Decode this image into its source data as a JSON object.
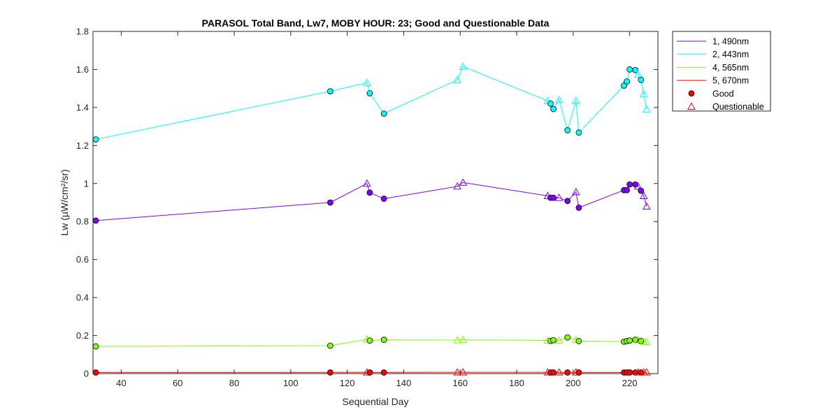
{
  "chart_data": {
    "type": "line",
    "title": "PARASOL Total Band,  Lw7, MOBY HOUR: 23;  Good and Questionable Data",
    "xlabel": "Sequential Day",
    "ylabel": "Lw (µW/cm²/sr)",
    "xlim": [
      30,
      230
    ],
    "ylim": [
      0,
      1.8
    ],
    "xticks": [
      40,
      60,
      80,
      100,
      120,
      140,
      160,
      180,
      200,
      220
    ],
    "yticks": [
      0,
      0.2,
      0.4,
      0.6,
      0.8,
      1,
      1.2,
      1.4,
      1.6,
      1.8
    ],
    "legend_position": "outside-top-right",
    "series": [
      {
        "name": "1, 490nm",
        "color": "#7F00FF",
        "points": [
          {
            "x": 31,
            "y": 0.805,
            "q": "good"
          },
          {
            "x": 114,
            "y": 0.9,
            "q": "good"
          },
          {
            "x": 127,
            "y": 1.0,
            "q": "questionable"
          },
          {
            "x": 128,
            "y": 0.952,
            "q": "good"
          },
          {
            "x": 133,
            "y": 0.92,
            "q": "good"
          },
          {
            "x": 159,
            "y": 0.985,
            "q": "questionable"
          },
          {
            "x": 161,
            "y": 1.005,
            "q": "questionable"
          },
          {
            "x": 191,
            "y": 0.935,
            "q": "questionable"
          },
          {
            "x": 192,
            "y": 0.925,
            "q": "good"
          },
          {
            "x": 193,
            "y": 0.925,
            "q": "good"
          },
          {
            "x": 195,
            "y": 0.925,
            "q": "questionable"
          },
          {
            "x": 198,
            "y": 0.908,
            "q": "good"
          },
          {
            "x": 201,
            "y": 0.955,
            "q": "questionable"
          },
          {
            "x": 202,
            "y": 0.873,
            "q": "good"
          },
          {
            "x": 218,
            "y": 0.965,
            "q": "good"
          },
          {
            "x": 219,
            "y": 0.965,
            "q": "good"
          },
          {
            "x": 220,
            "y": 0.995,
            "q": "good"
          },
          {
            "x": 222,
            "y": 0.995,
            "q": "good"
          },
          {
            "x": 223,
            "y": 0.985,
            "q": "questionable"
          },
          {
            "x": 224,
            "y": 0.962,
            "q": "good"
          },
          {
            "x": 225,
            "y": 0.935,
            "q": "questionable"
          },
          {
            "x": 226,
            "y": 0.88,
            "q": "questionable"
          }
        ]
      },
      {
        "name": "2, 443nm",
        "color": "#00FFFF",
        "points": [
          {
            "x": 31,
            "y": 1.232,
            "q": "good"
          },
          {
            "x": 114,
            "y": 1.485,
            "q": "good"
          },
          {
            "x": 127,
            "y": 1.53,
            "q": "questionable"
          },
          {
            "x": 128,
            "y": 1.475,
            "q": "good"
          },
          {
            "x": 133,
            "y": 1.368,
            "q": "good"
          },
          {
            "x": 159,
            "y": 1.545,
            "q": "questionable"
          },
          {
            "x": 161,
            "y": 1.615,
            "q": "questionable"
          },
          {
            "x": 191,
            "y": 1.435,
            "q": "questionable"
          },
          {
            "x": 192,
            "y": 1.42,
            "q": "good"
          },
          {
            "x": 193,
            "y": 1.392,
            "q": "good"
          },
          {
            "x": 195,
            "y": 1.44,
            "q": "questionable"
          },
          {
            "x": 198,
            "y": 1.28,
            "q": "good"
          },
          {
            "x": 201,
            "y": 1.435,
            "q": "questionable"
          },
          {
            "x": 202,
            "y": 1.268,
            "q": "good"
          },
          {
            "x": 218,
            "y": 1.515,
            "q": "good"
          },
          {
            "x": 219,
            "y": 1.537,
            "q": "good"
          },
          {
            "x": 220,
            "y": 1.6,
            "q": "good"
          },
          {
            "x": 222,
            "y": 1.597,
            "q": "good"
          },
          {
            "x": 223,
            "y": 1.575,
            "q": "questionable"
          },
          {
            "x": 224,
            "y": 1.545,
            "q": "good"
          },
          {
            "x": 225,
            "y": 1.47,
            "q": "questionable"
          },
          {
            "x": 226,
            "y": 1.39,
            "q": "questionable"
          }
        ]
      },
      {
        "name": "4, 565nm",
        "color": "#80FF00",
        "points": [
          {
            "x": 31,
            "y": 0.143,
            "q": "good"
          },
          {
            "x": 114,
            "y": 0.147,
            "q": "good"
          },
          {
            "x": 127,
            "y": 0.18,
            "q": "questionable"
          },
          {
            "x": 128,
            "y": 0.174,
            "q": "good"
          },
          {
            "x": 133,
            "y": 0.178,
            "q": "good"
          },
          {
            "x": 159,
            "y": 0.176,
            "q": "questionable"
          },
          {
            "x": 161,
            "y": 0.178,
            "q": "questionable"
          },
          {
            "x": 191,
            "y": 0.174,
            "q": "questionable"
          },
          {
            "x": 192,
            "y": 0.172,
            "q": "good"
          },
          {
            "x": 193,
            "y": 0.176,
            "q": "good"
          },
          {
            "x": 195,
            "y": 0.174,
            "q": "questionable"
          },
          {
            "x": 198,
            "y": 0.19,
            "q": "good"
          },
          {
            "x": 201,
            "y": 0.178,
            "q": "questionable"
          },
          {
            "x": 202,
            "y": 0.171,
            "q": "good"
          },
          {
            "x": 218,
            "y": 0.168,
            "q": "good"
          },
          {
            "x": 219,
            "y": 0.171,
            "q": "good"
          },
          {
            "x": 220,
            "y": 0.174,
            "q": "good"
          },
          {
            "x": 222,
            "y": 0.178,
            "q": "good"
          },
          {
            "x": 223,
            "y": 0.176,
            "q": "questionable"
          },
          {
            "x": 224,
            "y": 0.171,
            "q": "good"
          },
          {
            "x": 225,
            "y": 0.169,
            "q": "questionable"
          },
          {
            "x": 226,
            "y": 0.166,
            "q": "questionable"
          }
        ]
      },
      {
        "name": "5, 670nm",
        "color": "#FF0000",
        "points": [
          {
            "x": 31,
            "y": 0.006,
            "q": "good"
          },
          {
            "x": 114,
            "y": 0.006,
            "q": "good"
          },
          {
            "x": 127,
            "y": 0.007,
            "q": "questionable"
          },
          {
            "x": 128,
            "y": 0.006,
            "q": "good"
          },
          {
            "x": 133,
            "y": 0.006,
            "q": "good"
          },
          {
            "x": 159,
            "y": 0.007,
            "q": "questionable"
          },
          {
            "x": 161,
            "y": 0.007,
            "q": "questionable"
          },
          {
            "x": 191,
            "y": 0.007,
            "q": "questionable"
          },
          {
            "x": 192,
            "y": 0.006,
            "q": "good"
          },
          {
            "x": 193,
            "y": 0.006,
            "q": "good"
          },
          {
            "x": 195,
            "y": 0.007,
            "q": "questionable"
          },
          {
            "x": 198,
            "y": 0.006,
            "q": "good"
          },
          {
            "x": 201,
            "y": 0.007,
            "q": "questionable"
          },
          {
            "x": 202,
            "y": 0.006,
            "q": "good"
          },
          {
            "x": 218,
            "y": 0.006,
            "q": "good"
          },
          {
            "x": 219,
            "y": 0.006,
            "q": "good"
          },
          {
            "x": 220,
            "y": 0.006,
            "q": "good"
          },
          {
            "x": 222,
            "y": 0.006,
            "q": "good"
          },
          {
            "x": 223,
            "y": 0.007,
            "q": "questionable"
          },
          {
            "x": 224,
            "y": 0.006,
            "q": "good"
          },
          {
            "x": 225,
            "y": 0.007,
            "q": "questionable"
          },
          {
            "x": 226,
            "y": 0.007,
            "q": "questionable"
          }
        ]
      }
    ],
    "markers": [
      {
        "name": "Good",
        "shape": "circle",
        "color": "#FF0000"
      },
      {
        "name": "Questionable",
        "shape": "triangle",
        "color": "#FF0000"
      }
    ]
  }
}
